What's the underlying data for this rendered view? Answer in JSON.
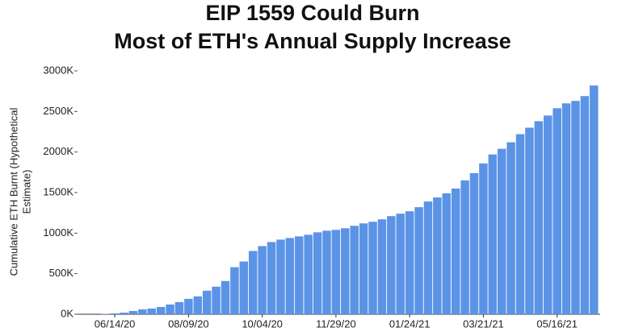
{
  "chart_data": {
    "type": "bar",
    "title": [
      "EIP 1559 Could Burn",
      "Most of ETH's Annual Supply Increase"
    ],
    "ylabel": [
      "Cumulative ETH Burnt (Hypothetical",
      "Estimate)"
    ],
    "color": "#5b93e6",
    "categories": [
      null,
      "06/14/20",
      null,
      null,
      null,
      null,
      null,
      null,
      null,
      "08/09/20",
      null,
      null,
      null,
      null,
      null,
      null,
      null,
      "10/04/20",
      null,
      null,
      null,
      null,
      null,
      null,
      null,
      "11/29/20",
      null,
      null,
      null,
      null,
      null,
      null,
      null,
      "01/24/21",
      null,
      null,
      null,
      null,
      null,
      null,
      null,
      "03/21/21",
      null,
      null,
      null,
      null,
      null,
      null,
      null,
      "05/16/21",
      null,
      null,
      null,
      null
    ],
    "values": [
      5,
      10,
      20,
      40,
      60,
      70,
      90,
      120,
      150,
      190,
      220,
      290,
      340,
      410,
      580,
      650,
      780,
      840,
      890,
      920,
      940,
      960,
      980,
      1010,
      1030,
      1040,
      1060,
      1090,
      1120,
      1140,
      1170,
      1210,
      1240,
      1270,
      1320,
      1390,
      1440,
      1490,
      1550,
      1650,
      1740,
      1860,
      1970,
      2040,
      2120,
      2220,
      2300,
      2380,
      2450,
      2540,
      2600,
      2630,
      2690,
      2820
    ],
    "ylim": [
      0,
      3000
    ],
    "yticks": [
      {
        "value": 0,
        "label": "0K"
      },
      {
        "value": 500,
        "label": "500K"
      },
      {
        "value": 1000,
        "label": "1000K"
      },
      {
        "value": 1500,
        "label": "1500K"
      },
      {
        "value": 2000,
        "label": "2000K"
      },
      {
        "value": 2500,
        "label": "2500K"
      },
      {
        "value": 3000,
        "label": "3000K"
      }
    ]
  }
}
